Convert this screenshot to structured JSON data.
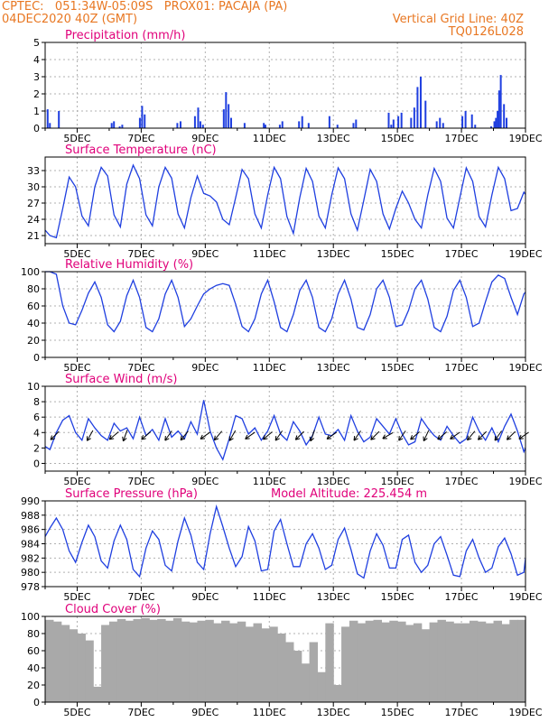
{
  "header": {
    "line1": "CPTEC:   051:34W-05:09S   PROX01: PACAJA (PA)",
    "line2": "04DEC2020 40Z (GMT)",
    "grid_note": "Vertical Grid Line: 40Z",
    "code": "TQ0126L028",
    "model_altitude": "Model Altitude: 225.454 m",
    "header_color": "#e87722",
    "title_color": "#e0007a",
    "series_color": "#1f3fe0",
    "cloud_color": "#a9a9a9"
  },
  "x_tick_labels": [
    "5DEC",
    "7DEC",
    "9DEC",
    "11DEC",
    "13DEC",
    "15DEC",
    "17DEC",
    "19DEC"
  ],
  "chart_data": [
    {
      "type": "bar",
      "title": "Precipitation (mm/h)",
      "xlim": [
        0,
        15
      ],
      "ylim": [
        0,
        5
      ],
      "yticks": [
        "0",
        "1",
        "2",
        "3",
        "4",
        "5"
      ],
      "x": [
        0.05,
        0.12,
        0.4,
        2.05,
        2.12,
        2.3,
        2.38,
        2.93,
        3.0,
        3.08,
        4.1,
        4.2,
        4.65,
        4.75,
        4.82,
        4.9,
        5.55,
        5.62,
        5.7,
        5.78,
        6.2,
        6.8,
        6.85,
        7.3,
        7.38,
        7.9,
        8.0,
        8.2,
        8.85,
        9.1,
        9.6,
        9.68,
        10.7,
        10.78,
        10.85,
        11.0,
        11.1,
        11.4,
        11.5,
        11.6,
        11.7,
        11.85,
        12.2,
        12.3,
        12.4,
        13.0,
        13.1,
        13.3,
        13.4,
        13.9,
        14.0,
        14.05,
        14.1,
        14.15,
        14.2,
        14.3,
        14.38
      ],
      "values": [
        1.1,
        0.3,
        1.0,
        0.3,
        0.4,
        0.1,
        0.2,
        0.6,
        1.3,
        0.8,
        0.3,
        0.4,
        0.7,
        1.2,
        0.4,
        0.2,
        1.1,
        2.1,
        1.4,
        0.6,
        0.3,
        0.3,
        0.2,
        0.2,
        0.4,
        0.4,
        0.7,
        0.3,
        0.7,
        0.2,
        0.3,
        0.5,
        0.9,
        0.2,
        0.5,
        0.7,
        0.9,
        0.6,
        1.2,
        2.4,
        3.0,
        1.6,
        0.4,
        0.6,
        0.3,
        0.7,
        1.0,
        0.8,
        0.2,
        0.1,
        0.4,
        0.6,
        1.0,
        2.2,
        3.1,
        1.4,
        0.6
      ]
    },
    {
      "type": "line",
      "title": "Surface Temperature (nC)",
      "xlim": [
        0,
        15
      ],
      "ylim": [
        19.5,
        35.5
      ],
      "yticks": [
        "21",
        "24",
        "27",
        "30",
        "33"
      ],
      "x": [
        0,
        0.15,
        0.35,
        0.55,
        0.75,
        0.95,
        1.15,
        1.35,
        1.55,
        1.75,
        1.95,
        2.15,
        2.35,
        2.55,
        2.75,
        2.95,
        3.15,
        3.35,
        3.55,
        3.75,
        3.95,
        4.15,
        4.35,
        4.55,
        4.75,
        4.95,
        5.15,
        5.35,
        5.55,
        5.75,
        5.95,
        6.15,
        6.35,
        6.55,
        6.75,
        6.95,
        7.15,
        7.35,
        7.55,
        7.75,
        7.95,
        8.15,
        8.35,
        8.55,
        8.75,
        8.95,
        9.15,
        9.35,
        9.55,
        9.75,
        9.95,
        10.15,
        10.35,
        10.55,
        10.75,
        10.95,
        11.15,
        11.35,
        11.55,
        11.75,
        11.95,
        12.15,
        12.35,
        12.55,
        12.75,
        12.95,
        13.15,
        13.35,
        13.55,
        13.75,
        13.95,
        14.15,
        14.35,
        14.55,
        14.75,
        14.95,
        15.0
      ],
      "values": [
        22.0,
        21.0,
        20.6,
        26.0,
        31.8,
        30.0,
        24.6,
        22.8,
        30.0,
        33.6,
        32.0,
        24.8,
        22.6,
        30.5,
        34.0,
        31.5,
        24.8,
        22.8,
        30.0,
        33.6,
        31.6,
        25.0,
        22.4,
        28.0,
        32.0,
        28.8,
        28.3,
        27.2,
        24.0,
        23.0,
        28.0,
        33.2,
        31.5,
        25.0,
        22.4,
        28.5,
        33.6,
        31.5,
        24.5,
        21.4,
        28.0,
        33.4,
        31.0,
        24.6,
        22.4,
        28.5,
        33.5,
        31.5,
        25.0,
        22.0,
        27.5,
        33.2,
        31.0,
        25.0,
        22.2,
        26.0,
        29.2,
        27.0,
        24.0,
        22.4,
        28.5,
        33.4,
        31.0,
        24.2,
        22.4,
        28.0,
        33.5,
        31.0,
        24.5,
        22.6,
        28.5,
        33.6,
        31.5,
        25.6,
        26.0,
        29.0,
        28.6
      ]
    },
    {
      "type": "line",
      "title": "Relative Humidity (%)",
      "xlim": [
        0,
        15
      ],
      "ylim": [
        0,
        100
      ],
      "yticks": [
        "0",
        "20",
        "40",
        "60",
        "80",
        "100"
      ],
      "x": [
        0,
        0.15,
        0.35,
        0.55,
        0.75,
        0.95,
        1.15,
        1.35,
        1.55,
        1.75,
        1.95,
        2.15,
        2.35,
        2.55,
        2.75,
        2.95,
        3.15,
        3.35,
        3.55,
        3.75,
        3.95,
        4.15,
        4.35,
        4.55,
        4.75,
        4.95,
        5.15,
        5.35,
        5.55,
        5.75,
        5.95,
        6.15,
        6.35,
        6.55,
        6.75,
        6.95,
        7.15,
        7.35,
        7.55,
        7.75,
        7.95,
        8.15,
        8.35,
        8.55,
        8.75,
        8.95,
        9.15,
        9.35,
        9.55,
        9.75,
        9.95,
        10.15,
        10.35,
        10.55,
        10.75,
        10.95,
        11.15,
        11.35,
        11.55,
        11.75,
        11.95,
        12.15,
        12.35,
        12.55,
        12.75,
        12.95,
        13.15,
        13.35,
        13.55,
        13.75,
        13.95,
        14.15,
        14.35,
        14.55,
        14.75,
        14.95,
        15.0
      ],
      "values": [
        100,
        100,
        97,
        60,
        40,
        38,
        55,
        75,
        88,
        70,
        38,
        30,
        42,
        72,
        90,
        70,
        35,
        30,
        45,
        74,
        90,
        70,
        36,
        45,
        60,
        74,
        80,
        84,
        86,
        84,
        62,
        36,
        30,
        45,
        74,
        90,
        65,
        35,
        30,
        50,
        78,
        90,
        70,
        35,
        30,
        45,
        74,
        90,
        68,
        35,
        32,
        50,
        80,
        90,
        70,
        36,
        38,
        55,
        80,
        90,
        68,
        35,
        30,
        48,
        78,
        90,
        70,
        36,
        40,
        65,
        88,
        96,
        92,
        70,
        50,
        74,
        76
      ]
    },
    {
      "type": "line",
      "title": "Surface Wind (m/s)",
      "xlim": [
        0,
        15
      ],
      "ylim": [
        -1,
        10
      ],
      "yticks": [
        "0",
        "2",
        "4",
        "6",
        "8",
        "10"
      ],
      "x": [
        0,
        0.15,
        0.35,
        0.55,
        0.75,
        0.95,
        1.15,
        1.35,
        1.55,
        1.75,
        1.95,
        2.15,
        2.35,
        2.55,
        2.75,
        2.95,
        3.15,
        3.35,
        3.55,
        3.75,
        3.95,
        4.15,
        4.35,
        4.55,
        4.75,
        4.95,
        5.15,
        5.35,
        5.55,
        5.75,
        5.95,
        6.15,
        6.35,
        6.55,
        6.75,
        6.95,
        7.15,
        7.35,
        7.55,
        7.75,
        7.95,
        8.15,
        8.35,
        8.55,
        8.75,
        8.95,
        9.15,
        9.35,
        9.55,
        9.75,
        9.95,
        10.15,
        10.35,
        10.55,
        10.75,
        10.95,
        11.15,
        11.35,
        11.55,
        11.75,
        11.95,
        12.15,
        12.35,
        12.55,
        12.75,
        12.95,
        13.15,
        13.35,
        13.55,
        13.75,
        13.95,
        14.15,
        14.35,
        14.55,
        14.75,
        14.95,
        15.0
      ],
      "values": [
        2.2,
        1.8,
        4.0,
        5.6,
        6.2,
        4.0,
        3.0,
        5.8,
        4.6,
        3.6,
        3.0,
        5.2,
        4.2,
        4.6,
        3.2,
        6.0,
        3.6,
        4.4,
        3.0,
        5.8,
        3.4,
        4.2,
        3.2,
        5.4,
        3.8,
        8.2,
        4.2,
        2.0,
        0.5,
        3.2,
        6.2,
        5.8,
        3.8,
        4.6,
        3.0,
        4.2,
        6.2,
        3.8,
        3.0,
        5.4,
        4.2,
        2.4,
        3.6,
        6.0,
        3.8,
        3.6,
        4.4,
        3.0,
        6.2,
        4.2,
        2.8,
        3.4,
        5.8,
        4.8,
        3.8,
        5.8,
        3.8,
        2.4,
        2.8,
        5.8,
        4.6,
        3.6,
        3.0,
        4.8,
        3.6,
        2.6,
        3.2,
        6.0,
        4.2,
        3.0,
        4.6,
        2.8,
        4.8,
        6.4,
        4.2,
        1.5,
        2.0
      ],
      "arrows_x": [
        0.3,
        1.4,
        2.15,
        2.5,
        3.15,
        3.85,
        4.35,
        5.0,
        5.4,
        5.85,
        6.4,
        6.95,
        7.3,
        7.95,
        8.35,
        8.95,
        9.75,
        10.3,
        10.7,
        11.15,
        11.55,
        11.9,
        12.4,
        12.8,
        13.3,
        13.65,
        14.15,
        14.55,
        14.95
      ],
      "arrows_dir": [
        225,
        210,
        230,
        200,
        230,
        215,
        220,
        235,
        220,
        210,
        235,
        230,
        215,
        225,
        200,
        235,
        215,
        225,
        240,
        215,
        230,
        205,
        230,
        235,
        220,
        225,
        215,
        225,
        235
      ]
    },
    {
      "type": "line",
      "title": "Surface Pressure (hPa)",
      "xlim": [
        0,
        15
      ],
      "ylim": [
        978,
        990
      ],
      "yticks": [
        "978",
        "980",
        "982",
        "984",
        "986",
        "988",
        "990"
      ],
      "x": [
        0,
        0.15,
        0.35,
        0.55,
        0.75,
        0.95,
        1.15,
        1.35,
        1.55,
        1.75,
        1.95,
        2.15,
        2.35,
        2.55,
        2.75,
        2.95,
        3.15,
        3.35,
        3.55,
        3.75,
        3.95,
        4.15,
        4.35,
        4.55,
        4.75,
        4.95,
        5.15,
        5.35,
        5.55,
        5.75,
        5.95,
        6.15,
        6.35,
        6.55,
        6.75,
        6.95,
        7.15,
        7.35,
        7.55,
        7.75,
        7.95,
        8.15,
        8.35,
        8.55,
        8.75,
        8.95,
        9.15,
        9.35,
        9.55,
        9.75,
        9.95,
        10.15,
        10.35,
        10.55,
        10.75,
        10.95,
        11.15,
        11.35,
        11.55,
        11.75,
        11.95,
        12.15,
        12.35,
        12.55,
        12.75,
        12.95,
        13.15,
        13.35,
        13.55,
        13.75,
        13.95,
        14.15,
        14.35,
        14.55,
        14.75,
        14.95,
        15.0
      ],
      "values": [
        985.0,
        986.2,
        987.6,
        986.0,
        983.0,
        981.4,
        984.2,
        986.6,
        985.0,
        981.6,
        980.6,
        984.4,
        986.6,
        984.6,
        980.4,
        979.4,
        983.4,
        985.8,
        984.6,
        981.0,
        980.2,
        984.4,
        987.6,
        985.2,
        981.4,
        980.4,
        985.4,
        989.2,
        986.4,
        983.4,
        980.8,
        982.2,
        986.4,
        984.4,
        980.2,
        980.4,
        985.8,
        987.4,
        984.0,
        980.8,
        980.8,
        984.0,
        985.4,
        983.4,
        980.4,
        981.0,
        984.6,
        986.2,
        983.2,
        979.8,
        979.2,
        983.0,
        985.4,
        983.8,
        980.6,
        980.6,
        984.6,
        985.2,
        981.4,
        980.0,
        981.0,
        984.0,
        985.0,
        982.4,
        979.6,
        979.4,
        983.0,
        984.6,
        982.0,
        980.0,
        980.6,
        983.6,
        984.8,
        982.6,
        979.6,
        980.0,
        982.0
      ]
    },
    {
      "type": "bar",
      "title": "Cloud Cover (%)",
      "xlim": [
        0,
        15
      ],
      "ylim": [
        0,
        100
      ],
      "yticks": [
        "0",
        "20",
        "40",
        "60",
        "80",
        "100"
      ],
      "x": [
        0,
        0.25,
        0.5,
        0.75,
        1.0,
        1.25,
        1.5,
        1.75,
        2.0,
        2.25,
        2.5,
        2.75,
        3.0,
        3.25,
        3.5,
        3.75,
        4.0,
        4.25,
        4.5,
        4.75,
        5.0,
        5.25,
        5.5,
        5.75,
        6.0,
        6.25,
        6.5,
        6.75,
        7.0,
        7.25,
        7.5,
        7.75,
        8.0,
        8.25,
        8.5,
        8.75,
        9.0,
        9.25,
        9.5,
        9.75,
        10.0,
        10.25,
        10.5,
        10.75,
        11.0,
        11.25,
        11.5,
        11.75,
        12.0,
        12.25,
        12.5,
        12.75,
        13.0,
        13.25,
        13.5,
        13.75,
        14.0,
        14.25,
        14.5,
        14.75
      ],
      "values": [
        96,
        94,
        90,
        85,
        80,
        72,
        18,
        90,
        94,
        97,
        95,
        97,
        98,
        96,
        97,
        95,
        98,
        94,
        93,
        95,
        96,
        92,
        95,
        92,
        94,
        88,
        92,
        86,
        88,
        80,
        70,
        60,
        45,
        70,
        35,
        92,
        20,
        88,
        95,
        92,
        95,
        96,
        93,
        95,
        94,
        90,
        92,
        85,
        93,
        96,
        94,
        92,
        92,
        95,
        94,
        92,
        95,
        91,
        96,
        96
      ]
    }
  ]
}
